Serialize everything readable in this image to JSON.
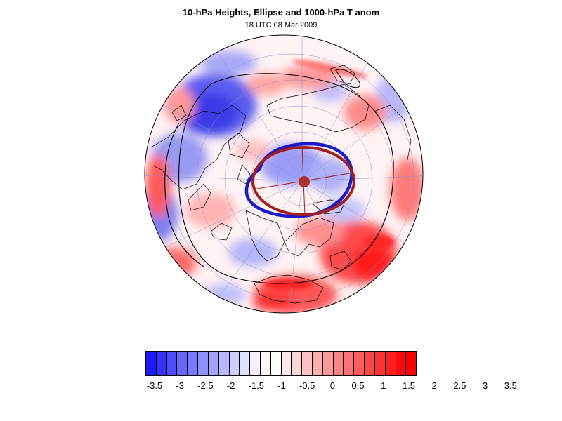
{
  "header": {
    "title": "10-hPa Heights, Ellipse and 1000-hPa T anom",
    "subtitle": "18 UTC 08 Mar 2009"
  },
  "map": {
    "projection": "polar-stereographic-northern-hemisphere",
    "field": "1000-hPa temperature anomaly",
    "ellipse_colors": {
      "observed": "#1a1acc",
      "fitted": "#a02020"
    },
    "center_marker_color": "#b03030"
  },
  "colorbar": {
    "labels": [
      "-3.5",
      "-3",
      "-2.5",
      "-2",
      "-1.5",
      "-1",
      "-0.5",
      "0",
      "0.5",
      "1",
      "1.5",
      "2",
      "2.5",
      "3",
      "3.5"
    ],
    "colors": [
      "#1a1aff",
      "#3333ff",
      "#4d4dff",
      "#6666ff",
      "#7a7aff",
      "#8f8fff",
      "#a3a3ff",
      "#b8b8ff",
      "#cccfff",
      "#e0e0ff",
      "#f0f0ff",
      "#fff5f5",
      "#ffffff",
      "#ffe8e8",
      "#ffd6d6",
      "#ffc2c2",
      "#ffadad",
      "#ff9999",
      "#ff8585",
      "#ff7070",
      "#ff5c5c",
      "#ff4747",
      "#ff3333",
      "#ff1f1f",
      "#ff0a0a",
      "#ff0000"
    ]
  }
}
